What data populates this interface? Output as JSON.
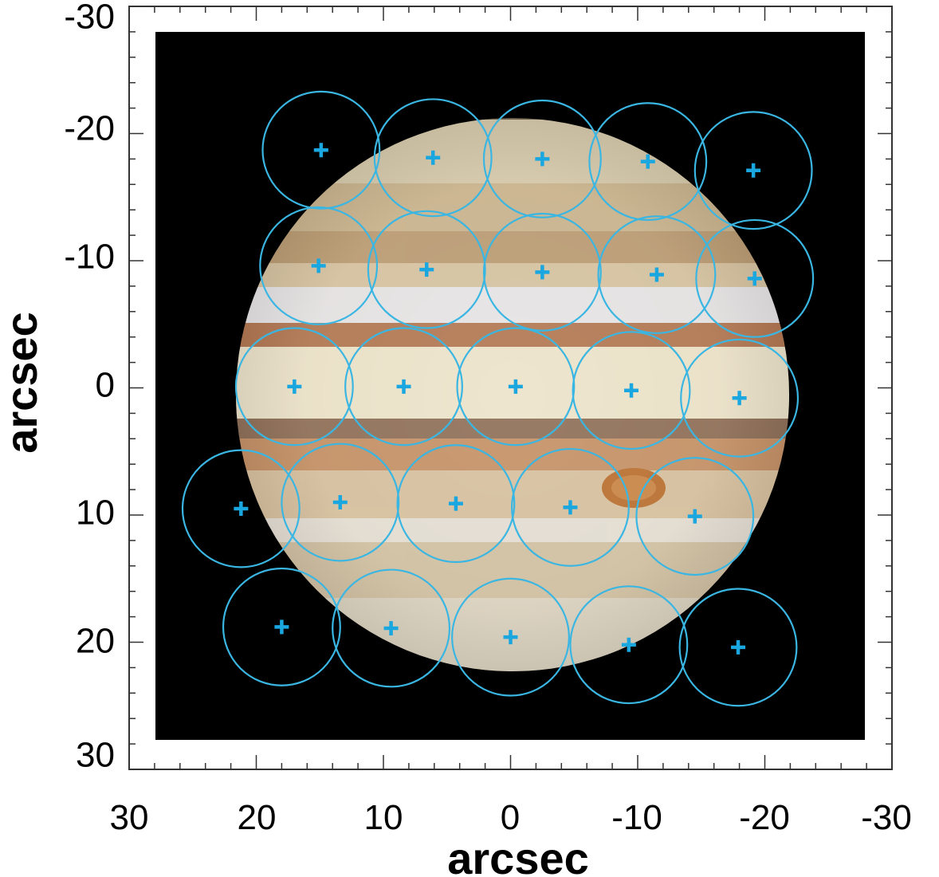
{
  "chart_data": {
    "type": "scatter",
    "xlabel": "arcsec",
    "ylabel": "arcsec",
    "xlim": [
      30,
      -30
    ],
    "ylim": [
      -30,
      30
    ],
    "x_ticks": [
      "30",
      "20",
      "10",
      "0",
      "-10",
      "-20",
      "-30"
    ],
    "y_ticks": [
      "-30",
      "-20",
      "-10",
      "0",
      "10",
      "20",
      "30"
    ],
    "image_extent_arcsec": {
      "x": [
        28,
        -28
      ],
      "y": [
        -28,
        27.5
      ]
    },
    "beam_radius_arcsec": 4.6,
    "grid": false,
    "legend": "none",
    "series": [
      {
        "points": [
          {
            "x": 14.9,
            "y": -18.7
          },
          {
            "x": 6.1,
            "y": -18.1
          },
          {
            "x": -2.5,
            "y": -18.0
          },
          {
            "x": -10.8,
            "y": -17.8
          },
          {
            "x": -19.1,
            "y": -17.1
          },
          {
            "x": 15.1,
            "y": -9.6
          },
          {
            "x": 6.6,
            "y": -9.3
          },
          {
            "x": -2.5,
            "y": -9.1
          },
          {
            "x": -11.5,
            "y": -8.9
          },
          {
            "x": -19.2,
            "y": -8.6
          },
          {
            "x": 17.0,
            "y": -0.1
          },
          {
            "x": 8.4,
            "y": -0.1
          },
          {
            "x": -0.4,
            "y": -0.1
          },
          {
            "x": -9.5,
            "y": 0.2
          },
          {
            "x": -18.0,
            "y": 0.8
          },
          {
            "x": 21.2,
            "y": 9.5
          },
          {
            "x": 13.4,
            "y": 9.0
          },
          {
            "x": 4.3,
            "y": 9.1
          },
          {
            "x": -4.7,
            "y": 9.4
          },
          {
            "x": -14.5,
            "y": 10.1
          },
          {
            "x": 18.0,
            "y": 18.8
          },
          {
            "x": 9.4,
            "y": 18.9
          },
          {
            "x": 0.0,
            "y": 19.6
          },
          {
            "x": -9.3,
            "y": 20.2
          },
          {
            "x": -17.9,
            "y": 20.4
          }
        ]
      }
    ]
  },
  "colors": {
    "marker": "#1AA7E0",
    "circle": "#3AB6E3",
    "background_image": "#000000",
    "axis": "#333333"
  }
}
